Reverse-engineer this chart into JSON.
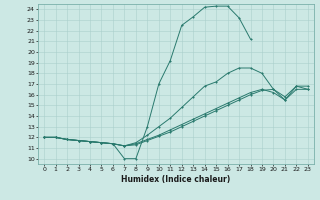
{
  "xlabel": "Humidex (Indice chaleur)",
  "bg_color": "#cce8e4",
  "grid_color": "#aacfcc",
  "line_color": "#2a7a6e",
  "xlim": [
    -0.5,
    23.5
  ],
  "ylim": [
    9.5,
    24.5
  ],
  "xticks": [
    0,
    1,
    2,
    3,
    4,
    5,
    6,
    7,
    8,
    9,
    10,
    11,
    12,
    13,
    14,
    15,
    16,
    17,
    18,
    19,
    20,
    21,
    22,
    23
  ],
  "yticks": [
    10,
    11,
    12,
    13,
    14,
    15,
    16,
    17,
    18,
    19,
    20,
    21,
    22,
    23,
    24
  ],
  "line1_x": [
    0,
    1,
    2,
    3,
    4,
    5,
    6,
    7,
    8,
    9,
    10,
    11,
    12,
    13,
    14,
    15,
    16,
    17,
    18
  ],
  "line1_y": [
    12,
    12,
    11.8,
    11.7,
    11.6,
    11.5,
    11.4,
    10.0,
    10.0,
    13.0,
    17.0,
    19.2,
    22.5,
    23.3,
    24.2,
    24.3,
    24.3,
    23.2,
    21.2
  ],
  "line2_x": [
    0,
    1,
    2,
    3,
    4,
    5,
    6,
    7,
    8,
    9,
    10,
    11,
    12,
    13,
    14,
    15,
    16,
    17,
    18,
    19,
    20,
    21,
    22,
    23
  ],
  "line2_y": [
    12,
    12,
    11.8,
    11.7,
    11.6,
    11.5,
    11.4,
    11.2,
    11.5,
    12.2,
    13.0,
    13.8,
    14.8,
    15.8,
    16.8,
    17.2,
    18.0,
    18.5,
    18.5,
    18.0,
    16.5,
    15.5,
    16.8,
    16.5
  ],
  "line3_x": [
    0,
    1,
    2,
    3,
    4,
    5,
    6,
    7,
    8,
    9,
    10,
    11,
    12,
    13,
    14,
    15,
    16,
    17,
    18,
    19,
    20,
    21,
    22,
    23
  ],
  "line3_y": [
    12,
    12,
    11.8,
    11.7,
    11.6,
    11.5,
    11.4,
    11.2,
    11.4,
    11.8,
    12.2,
    12.7,
    13.2,
    13.7,
    14.2,
    14.7,
    15.2,
    15.7,
    16.2,
    16.5,
    16.2,
    15.5,
    16.5,
    16.5
  ],
  "line4_x": [
    0,
    1,
    2,
    3,
    4,
    5,
    6,
    7,
    8,
    9,
    10,
    11,
    12,
    13,
    14,
    15,
    16,
    17,
    18,
    19,
    20,
    21,
    22,
    23
  ],
  "line4_y": [
    12,
    12,
    11.8,
    11.7,
    11.6,
    11.5,
    11.4,
    11.2,
    11.3,
    11.7,
    12.1,
    12.5,
    13.0,
    13.5,
    14.0,
    14.5,
    15.0,
    15.5,
    16.0,
    16.4,
    16.5,
    15.8,
    16.8,
    16.8
  ]
}
